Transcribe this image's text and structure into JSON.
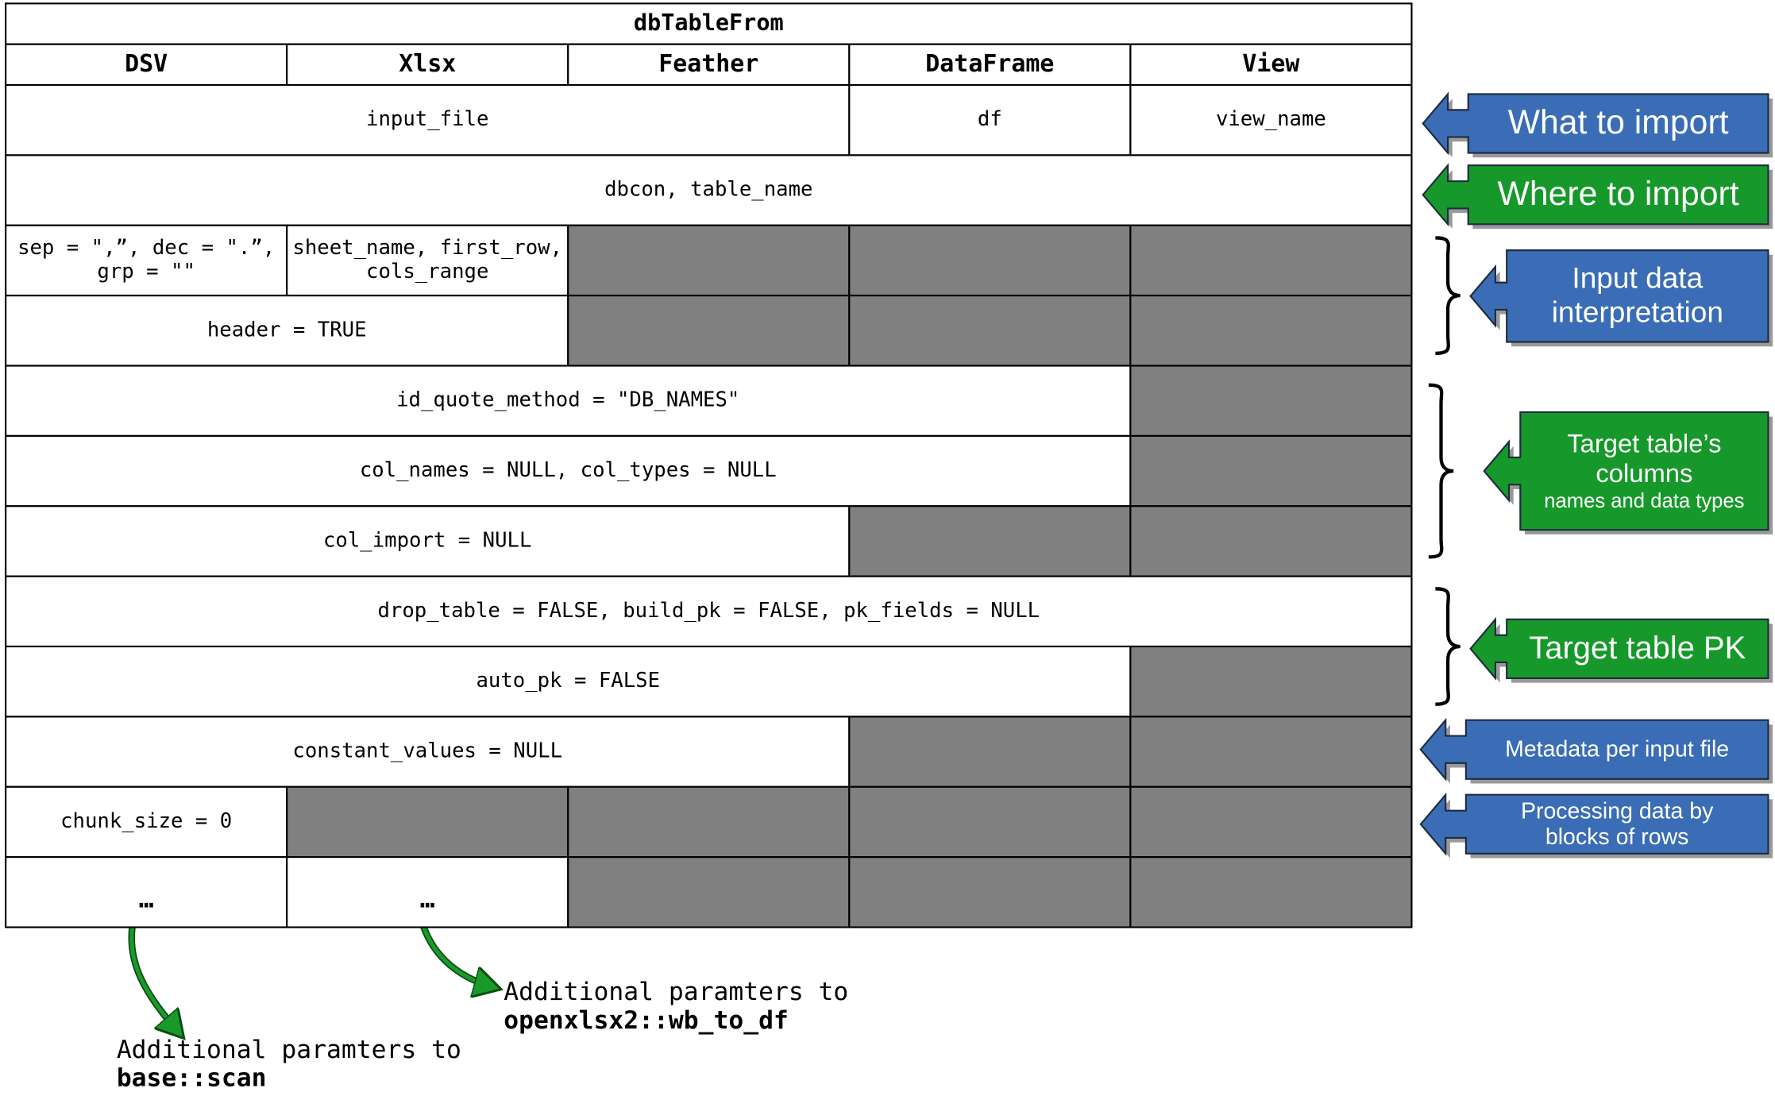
{
  "table": {
    "title": "dbTableFrom",
    "headers": [
      "DSV",
      "Xlsx",
      "Feather",
      "DataFrame",
      "View"
    ],
    "rows": [
      [
        {
          "lines": [
            "input_file"
          ],
          "span": 3
        },
        {
          "lines": [
            "df"
          ],
          "span": 1
        },
        {
          "lines": [
            "view_name"
          ],
          "span": 1
        }
      ],
      [
        {
          "lines": [
            "dbcon, table_name"
          ],
          "span": 5
        }
      ],
      [
        {
          "lines": [
            "sep = \",”, dec = \".”,",
            "grp = \"\""
          ],
          "span": 1
        },
        {
          "lines": [
            "sheet_name, first_row,",
            "cols_range"
          ],
          "span": 1
        },
        null,
        null,
        null
      ],
      [
        {
          "lines": [
            "header = TRUE"
          ],
          "span": 2
        },
        null,
        null,
        null
      ],
      [
        {
          "lines": [
            "id_quote_method = \"DB_NAMES\""
          ],
          "span": 4
        },
        null
      ],
      [
        {
          "lines": [
            "col_names = NULL, col_types = NULL"
          ],
          "span": 4
        },
        null
      ],
      [
        {
          "lines": [
            "col_import = NULL"
          ],
          "span": 3
        },
        null,
        null
      ],
      [
        {
          "lines": [
            "drop_table = FALSE, build_pk = FALSE, pk_fields = NULL"
          ],
          "span": 5
        }
      ],
      [
        {
          "lines": [
            "auto_pk = FALSE"
          ],
          "span": 4
        },
        null
      ],
      [
        {
          "lines": [
            "constant_values = NULL"
          ],
          "span": 3
        },
        null,
        null
      ],
      [
        {
          "lines": [
            "chunk_size = 0"
          ],
          "span": 1
        },
        null,
        null,
        null,
        null
      ],
      [
        {
          "lines": [
            "…"
          ],
          "span": 1
        },
        {
          "lines": [
            "…"
          ],
          "span": 1
        },
        null,
        null,
        null
      ]
    ]
  },
  "annotations": [
    {
      "lines": [
        "What to import"
      ],
      "color": "#3a6db5"
    },
    {
      "lines": [
        "Where to import"
      ],
      "color": "#16992a"
    },
    {
      "lines": [
        "Input data",
        "interpretation"
      ],
      "color": "#3a6db5"
    },
    {
      "lines": [
        "Target table’s",
        "columns",
        "names and data types"
      ],
      "color": "#16992a"
    },
    {
      "lines": [
        "Target table PK"
      ],
      "color": "#16992a"
    },
    {
      "lines": [
        "Metadata per input file"
      ],
      "color": "#3a6db5"
    },
    {
      "lines": [
        "Processing data by",
        "blocks of rows"
      ],
      "color": "#3a6db5"
    }
  ],
  "notes": [
    {
      "text": "Additional paramters to",
      "function": "base::scan"
    },
    {
      "text": "Additional paramters to",
      "function": "openxlsx2::wb_to_df"
    }
  ]
}
